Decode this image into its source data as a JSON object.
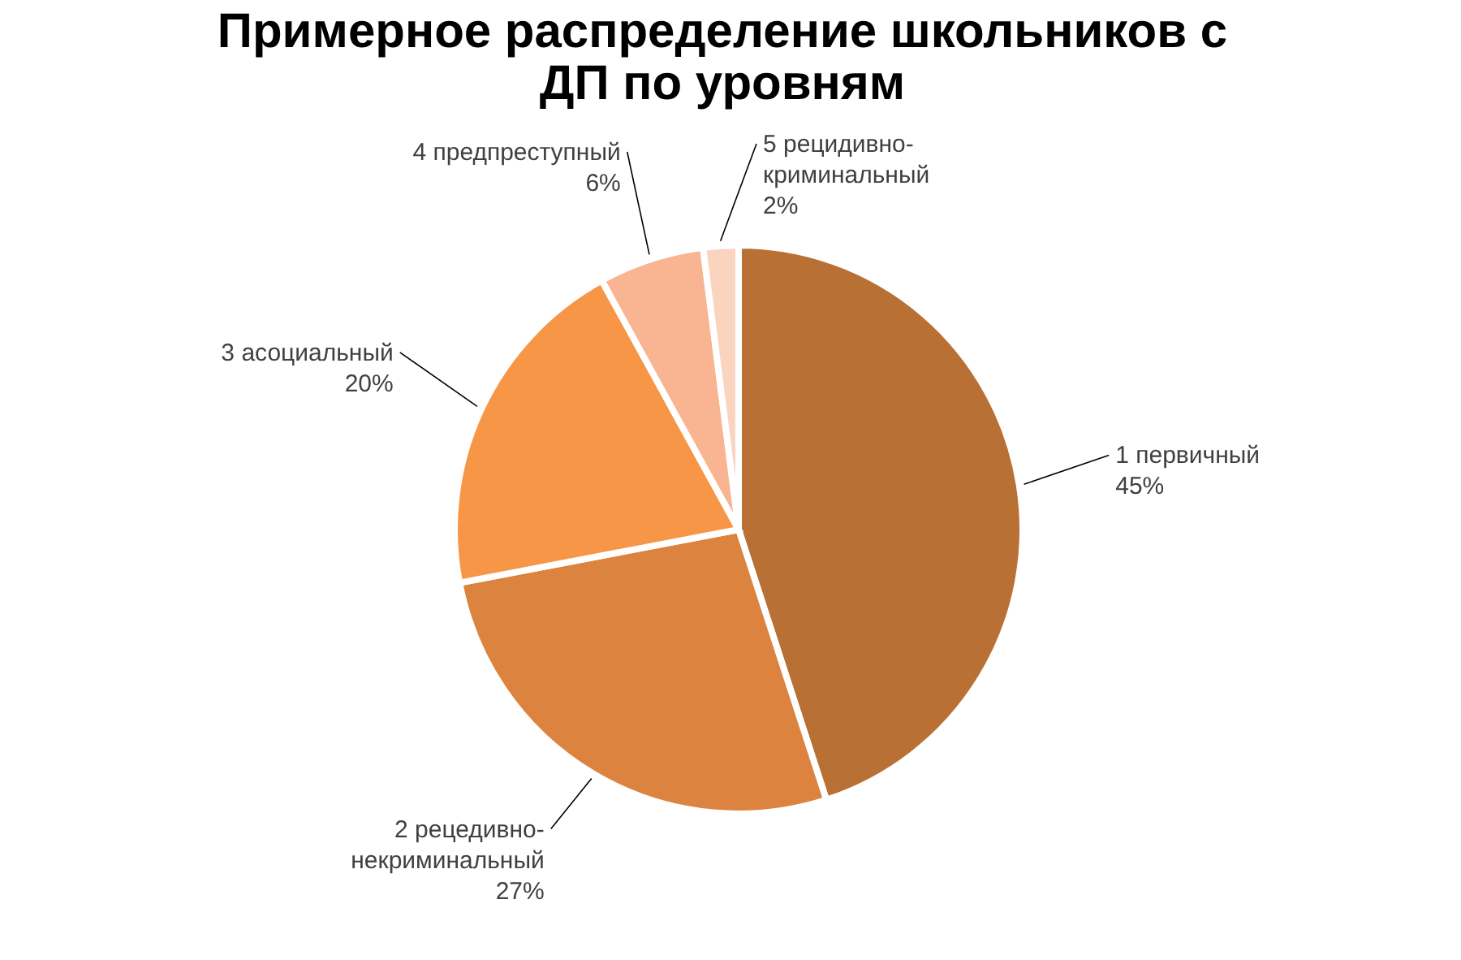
{
  "chart_data": {
    "type": "pie",
    "title": "Примерное распределение школьников с ДП по уровням",
    "categories": [
      "1 первичный",
      "2 рецедивно-некриминальный",
      "3 асоциальный",
      "4 предпреступный",
      "5 рецидивно-криминальный"
    ],
    "values": [
      45,
      27,
      20,
      6,
      2
    ],
    "value_labels": [
      "45%",
      "27%",
      "20%",
      "6%",
      "2%"
    ],
    "colors": [
      "#b87034",
      "#dc843f",
      "#f79646",
      "#f9b591",
      "#fbd4c0"
    ],
    "legend": false
  }
}
